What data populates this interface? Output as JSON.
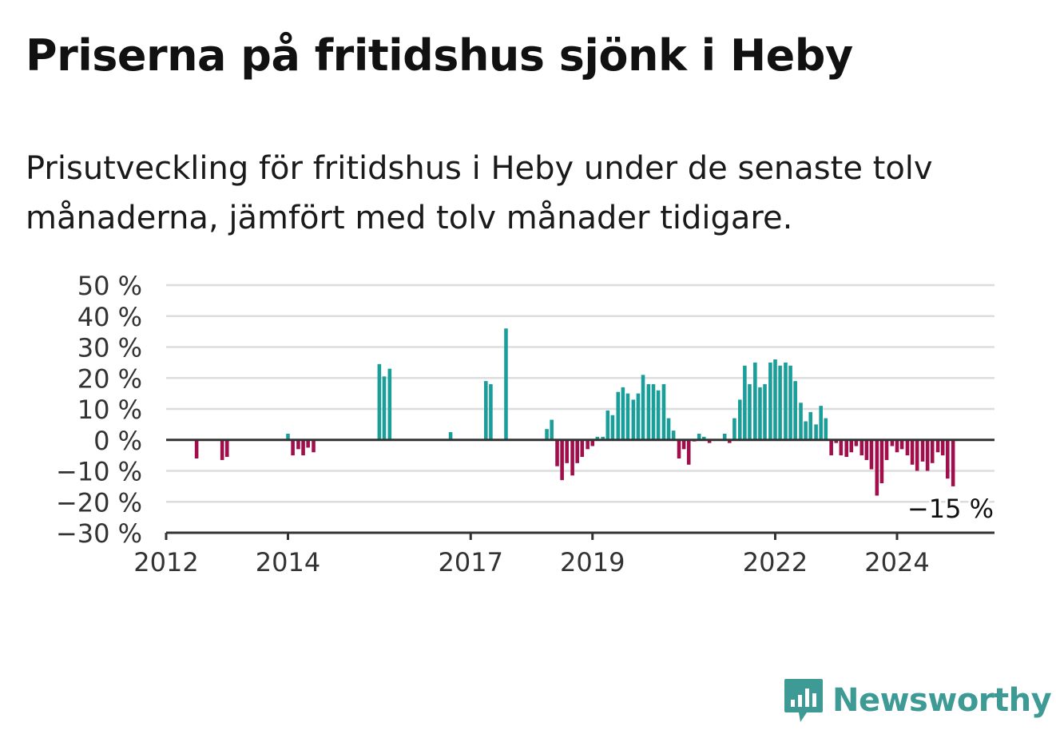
{
  "header": {
    "title": "Priserna på fritidshus sjönk i Heby",
    "subtitle": "Prisutveckling för fritidshus i Heby under de senaste tolv månaderna, jämfört med tolv månader tidigare."
  },
  "brand": {
    "name": "Newsworthy",
    "color": "#3e9a94"
  },
  "colors": {
    "positive": "#1a9e9a",
    "negative": "#a00f4c",
    "grid": "#dddddd",
    "axis": "#333333"
  },
  "chart_data": {
    "type": "bar",
    "title": "",
    "xlabel": "",
    "ylabel": "",
    "ylim": [
      -30,
      50
    ],
    "yticks": [
      50,
      40,
      30,
      20,
      10,
      0,
      -10,
      -20,
      -30
    ],
    "ytick_labels": [
      "50 %",
      "40 %",
      "30 %",
      "20 %",
      "10 %",
      "0 %",
      "−10 %",
      "−20 %",
      "−30 %"
    ],
    "xticks": [
      {
        "label": "2012",
        "x": 2012.0
      },
      {
        "label": "2014",
        "x": 2014.0
      },
      {
        "label": "2017",
        "x": 2017.0
      },
      {
        "label": "2019",
        "x": 2019.0
      },
      {
        "label": "2022",
        "x": 2022.0
      },
      {
        "label": "2024",
        "x": 2024.0
      }
    ],
    "grid": true,
    "annotation": "−15 %",
    "series": [
      {
        "x": [
          2012.5,
          2012.92,
          2013.0,
          2014.0,
          2014.08,
          2014.17,
          2014.25,
          2014.33,
          2014.42,
          2015.5,
          2015.58,
          2015.67,
          2016.67,
          2017.25,
          2017.33,
          2017.58,
          2018.25,
          2018.33,
          2018.42,
          2018.5,
          2018.58,
          2018.67,
          2018.75,
          2018.83,
          2018.92,
          2019.0,
          2019.08,
          2019.17,
          2019.25,
          2019.33,
          2019.42,
          2019.5,
          2019.58,
          2019.67,
          2019.75,
          2019.83,
          2019.92,
          2020.0,
          2020.08,
          2020.17,
          2020.25,
          2020.33,
          2020.42,
          2020.5,
          2020.58,
          2020.67,
          2020.75,
          2020.83,
          2020.92,
          2021.17,
          2021.25,
          2021.33,
          2021.42,
          2021.5,
          2021.58,
          2021.67,
          2021.75,
          2021.83,
          2021.92,
          2022.0,
          2022.08,
          2022.17,
          2022.25,
          2022.33,
          2022.42,
          2022.5,
          2022.58,
          2022.67,
          2022.75,
          2022.83,
          2022.92,
          2023.0,
          2023.08,
          2023.17,
          2023.25,
          2023.33,
          2023.42,
          2023.5,
          2023.58,
          2023.67,
          2023.75,
          2023.83,
          2023.92,
          2024.0,
          2024.08,
          2024.17,
          2024.25,
          2024.33,
          2024.42,
          2024.5,
          2024.58,
          2024.67,
          2024.75,
          2024.83,
          2024.92
        ],
        "values": [
          -6,
          -6.5,
          -5.5,
          2,
          -5,
          -3,
          -5,
          -2.5,
          -4,
          24.5,
          20.5,
          23,
          2.5,
          19,
          18,
          36,
          3.5,
          6.5,
          -8.5,
          -13,
          -7.5,
          -11.5,
          -7.5,
          -5.5,
          -3,
          -2,
          1,
          1,
          9.5,
          8,
          15.5,
          17,
          15,
          13,
          15,
          21,
          18,
          18,
          16,
          18,
          7,
          3,
          -6,
          -3,
          -8,
          -0.5,
          2,
          1,
          -1,
          2,
          -1,
          7,
          13,
          24,
          18,
          25,
          17,
          18,
          25,
          26,
          24,
          25,
          24,
          19,
          12,
          6,
          9,
          5,
          11,
          7,
          -5,
          -1,
          -5,
          -5.5,
          -4,
          -2,
          -5,
          -6.5,
          -9.5,
          -18,
          -14,
          -6.5,
          -2,
          -4,
          -3,
          -5,
          -8,
          -10,
          -7,
          -10,
          -7.5,
          -4,
          -5,
          -12.5,
          -15
        ]
      }
    ]
  }
}
